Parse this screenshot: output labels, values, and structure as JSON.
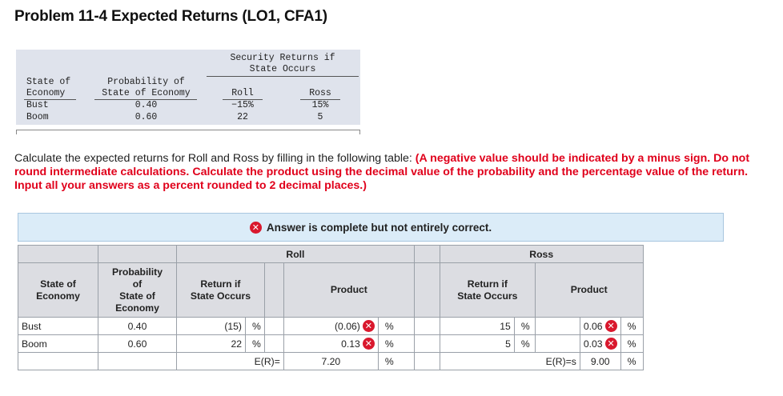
{
  "title": "Problem 11-4 Expected Returns (LO1, CFA1)",
  "given_table": {
    "group_header_line1": "Security Returns if",
    "group_header_line2": "State Occurs",
    "col_state_line1": "State of",
    "col_state_line2": "Economy",
    "col_prob_line1": "Probability of",
    "col_prob_line2": "State of Economy",
    "col_roll": "Roll",
    "col_ross": "Ross",
    "rows": [
      {
        "state": "Bust",
        "prob": "0.40",
        "roll": "−15%",
        "ross": "15%"
      },
      {
        "state": "Boom",
        "prob": "0.60",
        "roll": "22",
        "ross": "5"
      }
    ]
  },
  "instructions": {
    "plain": "Calculate the expected returns for Roll and Ross by filling in the following table: ",
    "red": "(A negative value should be indicated by a minus sign. Do not round intermediate calculations. Calculate the product using the decimal value of the probability and the percentage value of the return. Input all your answers as a percent rounded to 2 decimal places.)"
  },
  "banner": {
    "icon": "x-circle-icon",
    "text": "Answer is complete but not entirely correct."
  },
  "answer_table": {
    "group_roll": "Roll",
    "group_ross": "Ross",
    "h_state_1": "State of",
    "h_state_2": "Economy",
    "h_prob_1": "Probability",
    "h_prob_2": "of",
    "h_prob_3": "State of",
    "h_prob_4": "Economy",
    "h_return_1": "Return if",
    "h_return_2": "State Occurs",
    "h_product": "Product",
    "percent": "%",
    "rows": [
      {
        "state": "Bust",
        "prob": "0.40",
        "roll_return": "(15)",
        "roll_product": "(0.06)",
        "ross_return": "15",
        "ross_product": "0.06"
      },
      {
        "state": "Boom",
        "prob": "0.60",
        "roll_return": "22",
        "roll_product": "0.13",
        "ross_return": "5",
        "ross_product": "0.03"
      }
    ],
    "total_label_roll": "E(R)=",
    "total_roll": "7.20",
    "total_label_ross": "E(R)=s",
    "total_ross": "9.00"
  }
}
